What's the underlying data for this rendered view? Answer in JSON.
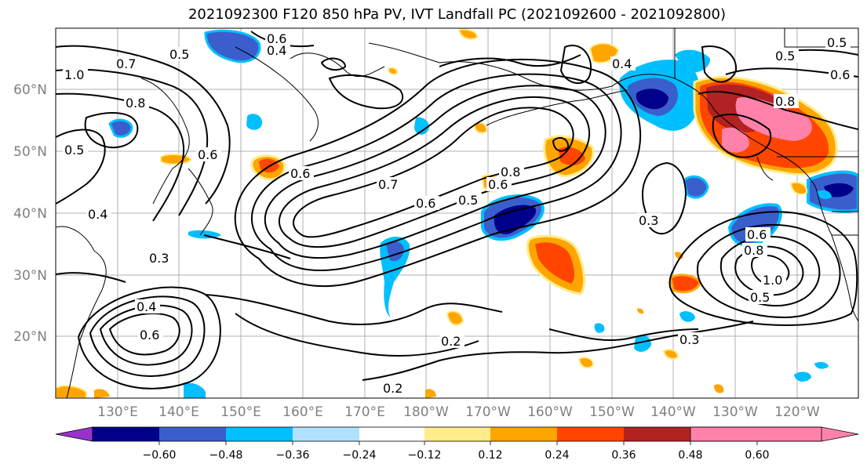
{
  "title": "2021092300 F120 850 hPa PV, IVT Landfall PC (2021092600 - 2021092800)",
  "lat_labels": [
    "60°N",
    "50°N",
    "40°N",
    "30°N",
    "20°N"
  ],
  "lon_labels": [
    "130°E",
    "140°E",
    "150°E",
    "160°E",
    "170°E",
    "180°W",
    "170°W",
    "160°W",
    "150°W",
    "140°W",
    "130°W",
    "120°W"
  ],
  "colorbar": {
    "ticks": [
      "−0.60",
      "−0.48",
      "−0.36",
      "−0.24",
      "−0.12",
      "0.12",
      "0.24",
      "0.36",
      "0.48",
      "0.60"
    ],
    "colors": [
      "#9932cc",
      "#00008b",
      "#3a5fcd",
      "#00bfff",
      "#b0e2ff",
      "#ffffff",
      "#ffec8b",
      "#ffa500",
      "#ff4500",
      "#b22222",
      "#ff82ab"
    ]
  },
  "contour_labels": [
    "0.6",
    "0.4",
    "0.5",
    "0.7",
    "1.0",
    "0.8",
    "0.6",
    "0.4",
    "0.6",
    "0.5",
    "0.3",
    "0.4",
    "0.6",
    "0.6",
    "0.7",
    "0.6",
    "0.5",
    "0.8",
    "0.3",
    "0.2",
    "0.3",
    "0.2",
    "0.5",
    "0.6",
    "0.8",
    "1.0",
    "0.5",
    "0.4",
    "0.5",
    "0.6",
    "0.8"
  ]
}
